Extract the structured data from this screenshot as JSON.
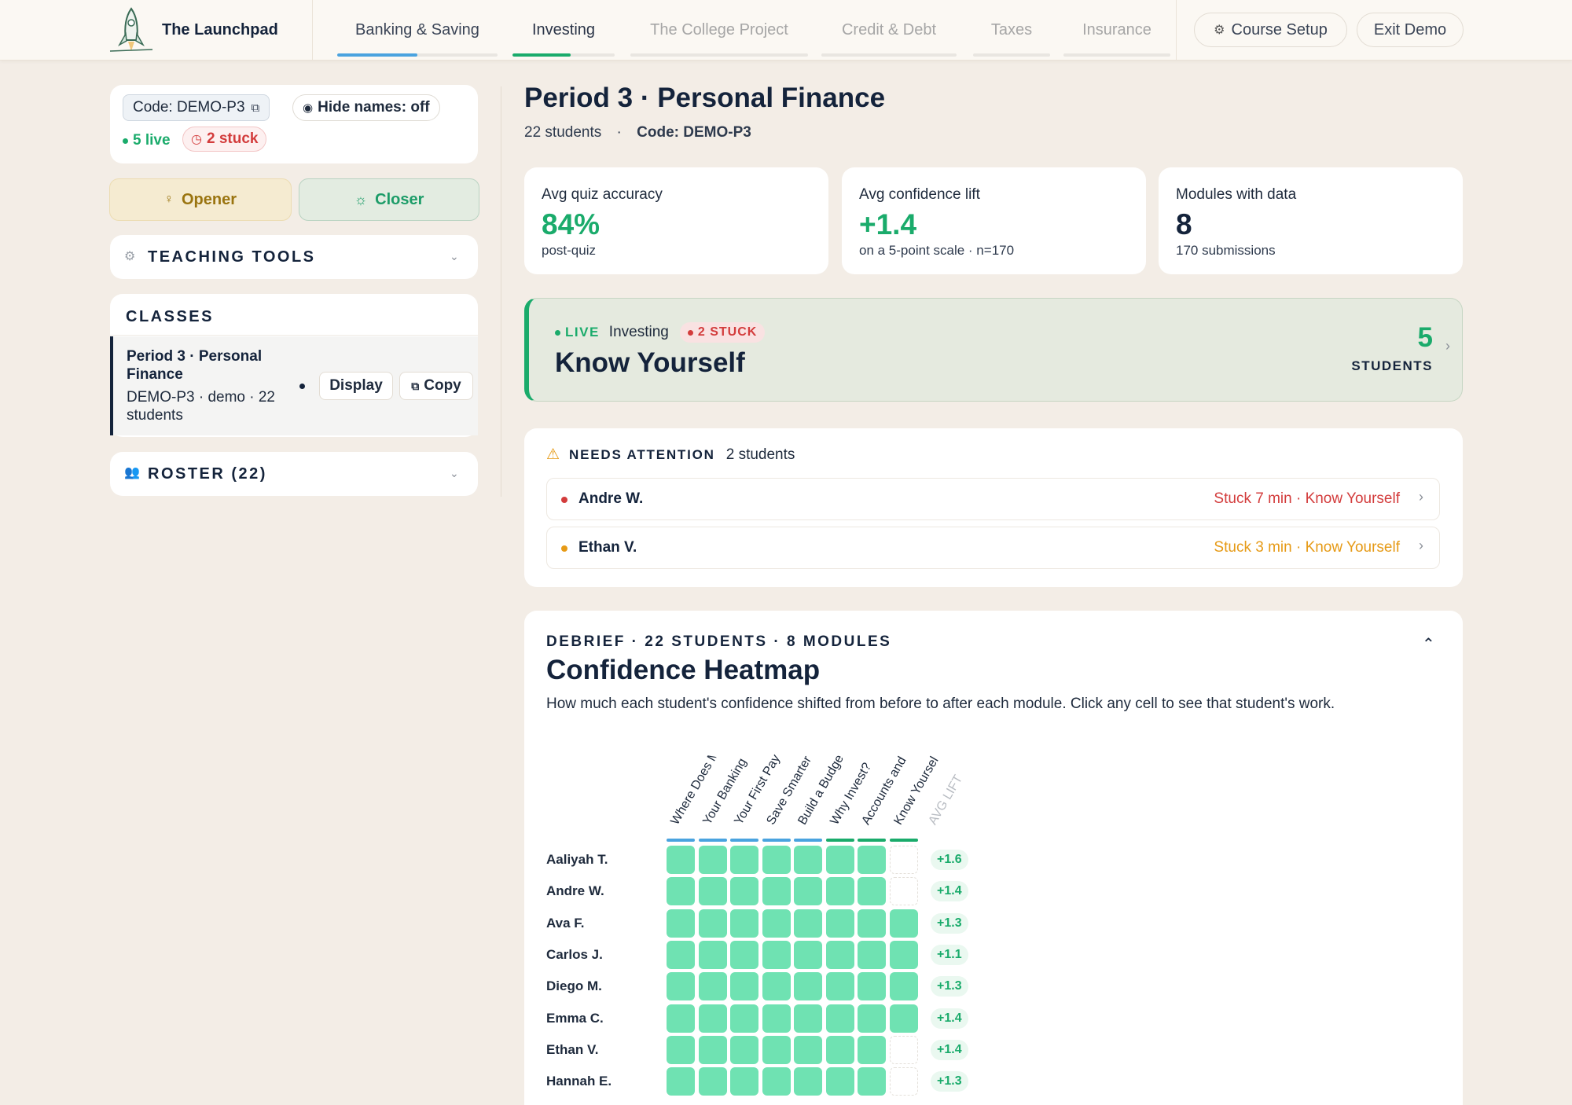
{
  "app": {
    "name": "The Launchpad"
  },
  "nav": {
    "tabs": [
      {
        "label": "Banking & Saving",
        "progress": 0.5,
        "color": "#4aa3df"
      },
      {
        "label": "Investing",
        "progress": 0.57,
        "color": "#1aab6b"
      },
      {
        "label": "The College Project",
        "progress": 0,
        "color": "#e9e6e1"
      },
      {
        "label": "Credit & Debt",
        "progress": 0,
        "color": "#e9e6e1"
      },
      {
        "label": "Taxes",
        "progress": 0,
        "color": "#e9e6e1"
      },
      {
        "label": "Insurance",
        "progress": 0,
        "color": "#e9e6e1"
      }
    ],
    "course_setup": "Course Setup",
    "exit_demo": "Exit Demo"
  },
  "sidebar": {
    "code_label": "Code: DEMO-P3",
    "hide_names": "Hide names: off",
    "live": "5 live",
    "stuck": "2 stuck",
    "opener": "Opener",
    "closer": "Closer",
    "teaching_tools": "TEACHING TOOLS",
    "classes_title": "CLASSES",
    "class_item": {
      "title_line1": "Period 3 · Personal",
      "title_line2": "Finance",
      "meta_line1": "DEMO-P3 · demo · 22",
      "meta_line2": "students",
      "display": "Display",
      "copy": "Copy"
    },
    "roster": "ROSTER (22)"
  },
  "main": {
    "title": "Period 3 · Personal Finance",
    "students": "22 students",
    "sep": "·",
    "code": "Code: DEMO-P3",
    "stats": [
      {
        "label": "Avg quiz accuracy",
        "value": "84%",
        "foot": "post-quiz",
        "color": "#1aab6b"
      },
      {
        "label": "Avg confidence lift",
        "value": "+1.4",
        "foot": "on a 5-point scale · n=170",
        "color": "#1aab6b"
      },
      {
        "label": "Modules with data",
        "value": "8",
        "foot": "170 submissions",
        "color": "#14233b"
      }
    ],
    "live_card": {
      "live": "LIVE",
      "unit": "Investing",
      "stuck": "2 STUCK",
      "module": "Know Yourself",
      "count": "5",
      "count_label": "STUDENTS"
    },
    "attention": {
      "title": "NEEDS ATTENTION",
      "count": "2 students",
      "rows": [
        {
          "name": "Andre W.",
          "status": "Stuck 7 min · Know Yourself",
          "color": "#d33c3c"
        },
        {
          "name": "Ethan V.",
          "status": "Stuck 3 min · Know Yourself",
          "color": "#e69a16"
        }
      ]
    },
    "heatmap": {
      "eyebrow": "DEBRIEF · 22 STUDENTS · 8 MODULES",
      "title": "Confidence Heatmap",
      "desc": "How much each student's confidence shifted from before to after each module. Click any cell to see that student's work.",
      "columns": [
        {
          "label": "Where Does M",
          "color": "#4aa3df"
        },
        {
          "label": "Your Banking",
          "color": "#4aa3df"
        },
        {
          "label": "Your First Pay",
          "color": "#4aa3df"
        },
        {
          "label": "Save Smarter",
          "color": "#4aa3df"
        },
        {
          "label": "Build a Budge",
          "color": "#4aa3df"
        },
        {
          "label": "Why Invest?",
          "color": "#1aab6b"
        },
        {
          "label": "Accounts and",
          "color": "#1aab6b"
        },
        {
          "label": "Know Yoursel",
          "color": "#1aab6b"
        }
      ],
      "avg_label": "AVG LIFT",
      "rows": [
        {
          "name": "Aaliyah T.",
          "filled": 7,
          "lift": "+1.6"
        },
        {
          "name": "Andre W.",
          "filled": 7,
          "lift": "+1.4"
        },
        {
          "name": "Ava F.",
          "filled": 8,
          "lift": "+1.3"
        },
        {
          "name": "Carlos J.",
          "filled": 8,
          "lift": "+1.1"
        },
        {
          "name": "Diego M.",
          "filled": 8,
          "lift": "+1.3"
        },
        {
          "name": "Emma C.",
          "filled": 8,
          "lift": "+1.4"
        },
        {
          "name": "Ethan V.",
          "filled": 7,
          "lift": "+1.4"
        },
        {
          "name": "Hannah E.",
          "filled": 7,
          "lift": "+1.3"
        }
      ]
    }
  }
}
